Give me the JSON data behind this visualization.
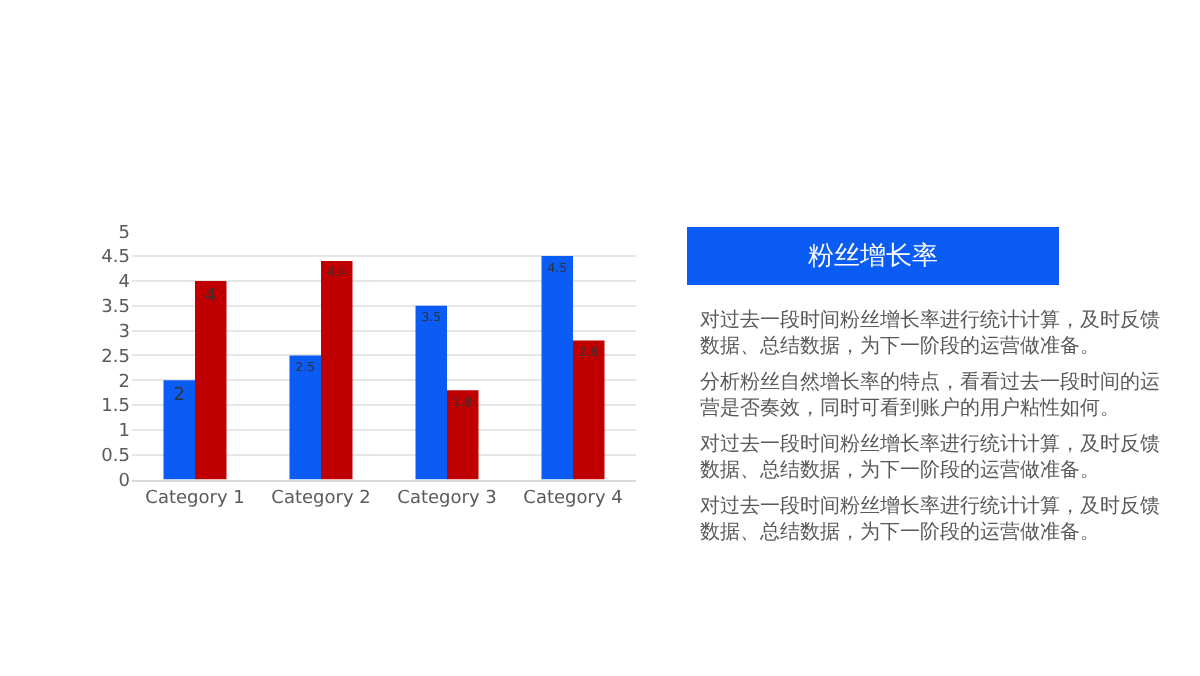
{
  "chart_data": {
    "type": "bar",
    "title": "粉丝增长率",
    "categories": [
      "Category 1",
      "Category 2",
      "Category 3",
      "Category 4"
    ],
    "series": [
      {
        "color": "#0a5cf5",
        "values": [
          2,
          2.5,
          3.5,
          4.5
        ]
      },
      {
        "color": "#c00000",
        "values": [
          4,
          4.4,
          1.8,
          2.8
        ]
      }
    ],
    "ylim": [
      0,
      5
    ],
    "yticks": [
      0,
      0.5,
      1,
      1.5,
      2,
      2.5,
      3,
      3.5,
      4,
      4.5,
      5
    ],
    "grid": "y",
    "data_labels": true,
    "annotations": [
      "对过去一段时间粉丝增长率进行统计计算，及时反馈数据、总结数据，为下一阶段的运营做准备。",
      "分析粉丝自然增长率的特点，看看过去一段时间的运营是否奏效，同时可看到账户的用户粘性如何。",
      "对过去一段时间粉丝增长率进行统计计算，及时反馈数据、总结数据，为下一阶段的运营做准备。",
      "对过去一段时间粉丝增长率进行统计计算，及时反馈数据、总结数据，为下一阶段的运营做准备。"
    ]
  }
}
